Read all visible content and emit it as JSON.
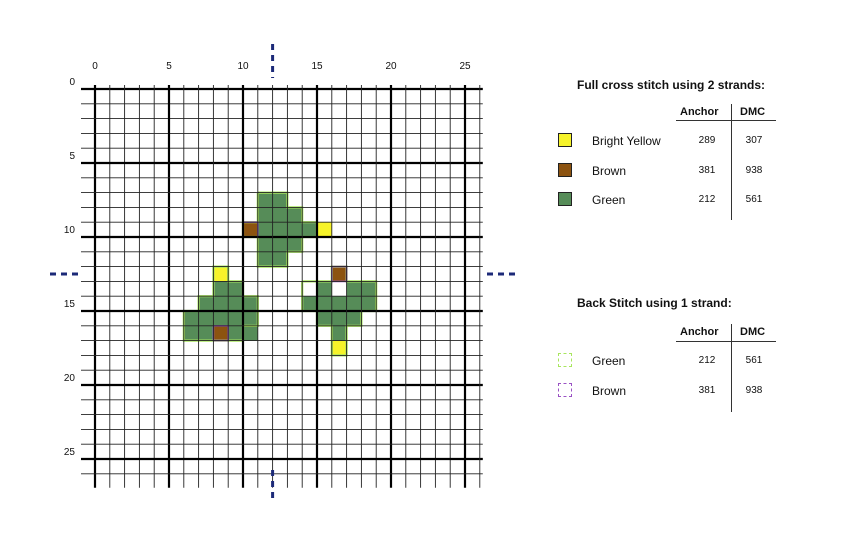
{
  "pattern": {
    "grid_size": 26,
    "x_labels": [
      "0",
      "5",
      "10",
      "15",
      "20",
      "25"
    ],
    "y_labels": [
      "0",
      "5",
      "10",
      "15",
      "20",
      "25"
    ],
    "center": 12,
    "stitches": {
      "green": [
        [
          11,
          7
        ],
        [
          12,
          7
        ],
        [
          11,
          8
        ],
        [
          12,
          8
        ],
        [
          13,
          8
        ],
        [
          11,
          9
        ],
        [
          12,
          9
        ],
        [
          13,
          9
        ],
        [
          14,
          9
        ],
        [
          11,
          10
        ],
        [
          12,
          10
        ],
        [
          13,
          10
        ],
        [
          11,
          11
        ],
        [
          12,
          11
        ],
        [
          8,
          13
        ],
        [
          9,
          13
        ],
        [
          7,
          14
        ],
        [
          8,
          14
        ],
        [
          9,
          14
        ],
        [
          10,
          14
        ],
        [
          6,
          15
        ],
        [
          7,
          15
        ],
        [
          8,
          15
        ],
        [
          9,
          15
        ],
        [
          10,
          15
        ],
        [
          6,
          16
        ],
        [
          7,
          16
        ],
        [
          9,
          16
        ],
        [
          10,
          16
        ],
        [
          15,
          13
        ],
        [
          17,
          13
        ],
        [
          18,
          13
        ],
        [
          14,
          14
        ],
        [
          15,
          14
        ],
        [
          16,
          14
        ],
        [
          17,
          14
        ],
        [
          18,
          14
        ],
        [
          15,
          15
        ],
        [
          16,
          15
        ],
        [
          17,
          15
        ],
        [
          16,
          16
        ]
      ],
      "yellow": [
        [
          15,
          9
        ],
        [
          8,
          12
        ],
        [
          16,
          17
        ]
      ],
      "brown": [
        [
          10,
          9
        ],
        [
          16,
          12
        ],
        [
          8,
          16
        ]
      ]
    },
    "backstitch": {
      "green": [
        [
          [
            11,
            7
          ],
          [
            13,
            7
          ],
          [
            13,
            8
          ],
          [
            14,
            8
          ],
          [
            14,
            9
          ],
          [
            15,
            9
          ],
          [
            15,
            10
          ],
          [
            14,
            10
          ],
          [
            14,
            11
          ],
          [
            13,
            11
          ],
          [
            13,
            12
          ],
          [
            11,
            12
          ],
          [
            11,
            10
          ],
          [
            10,
            10
          ],
          [
            10,
            9
          ],
          [
            11,
            9
          ],
          [
            11,
            7
          ]
        ],
        [
          [
            8,
            13
          ],
          [
            8,
            12
          ],
          [
            9,
            12
          ],
          [
            9,
            13
          ],
          [
            10,
            13
          ],
          [
            10,
            14
          ],
          [
            11,
            14
          ],
          [
            11,
            16
          ],
          [
            10,
            16
          ],
          [
            10,
            17
          ],
          [
            9,
            17
          ],
          [
            8,
            17
          ],
          [
            7,
            17
          ],
          [
            6,
            17
          ],
          [
            6,
            15
          ],
          [
            7,
            15
          ],
          [
            7,
            14
          ],
          [
            8,
            14
          ],
          [
            8,
            13
          ]
        ],
        [
          [
            14,
            13
          ],
          [
            16,
            13
          ],
          [
            16,
            12
          ],
          [
            17,
            12
          ],
          [
            17,
            13
          ],
          [
            19,
            13
          ],
          [
            19,
            15
          ],
          [
            18,
            15
          ],
          [
            18,
            16
          ],
          [
            17,
            16
          ],
          [
            17,
            18
          ],
          [
            16,
            18
          ],
          [
            16,
            16
          ],
          [
            15,
            16
          ],
          [
            15,
            15
          ],
          [
            14,
            15
          ],
          [
            14,
            13
          ]
        ]
      ],
      "brown": [
        [
          [
            10,
            9
          ],
          [
            11,
            9
          ],
          [
            11,
            10
          ],
          [
            10,
            10
          ],
          [
            10,
            9
          ]
        ],
        [
          [
            16,
            12
          ],
          [
            17,
            12
          ],
          [
            17,
            13
          ],
          [
            16,
            13
          ],
          [
            16,
            12
          ]
        ],
        [
          [
            8,
            16
          ],
          [
            9,
            16
          ],
          [
            9,
            17
          ],
          [
            8,
            17
          ],
          [
            8,
            16
          ]
        ]
      ]
    }
  },
  "colors": {
    "bright_yellow": "#f6f32a",
    "brown": "#8c5310",
    "green": "#568c58",
    "backstitch_green": "#a8e65e",
    "backstitch_brown": "#9a52c4",
    "center_marker": "#1c2a78"
  },
  "legend": {
    "full_cross": {
      "title": "Full cross stitch using 2 strands:",
      "col_anchor": "Anchor",
      "col_dmc": "DMC",
      "items": [
        {
          "name": "Bright Yellow",
          "anchor": "289",
          "dmc": "307"
        },
        {
          "name": "Brown",
          "anchor": "381",
          "dmc": "938"
        },
        {
          "name": "Green",
          "anchor": "212",
          "dmc": "561"
        }
      ]
    },
    "back_stitch": {
      "title": "Back Stitch using 1 strand:",
      "col_anchor": "Anchor",
      "col_dmc": "DMC",
      "items": [
        {
          "name": "Green",
          "anchor": "212",
          "dmc": "561"
        },
        {
          "name": "Brown",
          "anchor": "381",
          "dmc": "938"
        }
      ]
    }
  }
}
